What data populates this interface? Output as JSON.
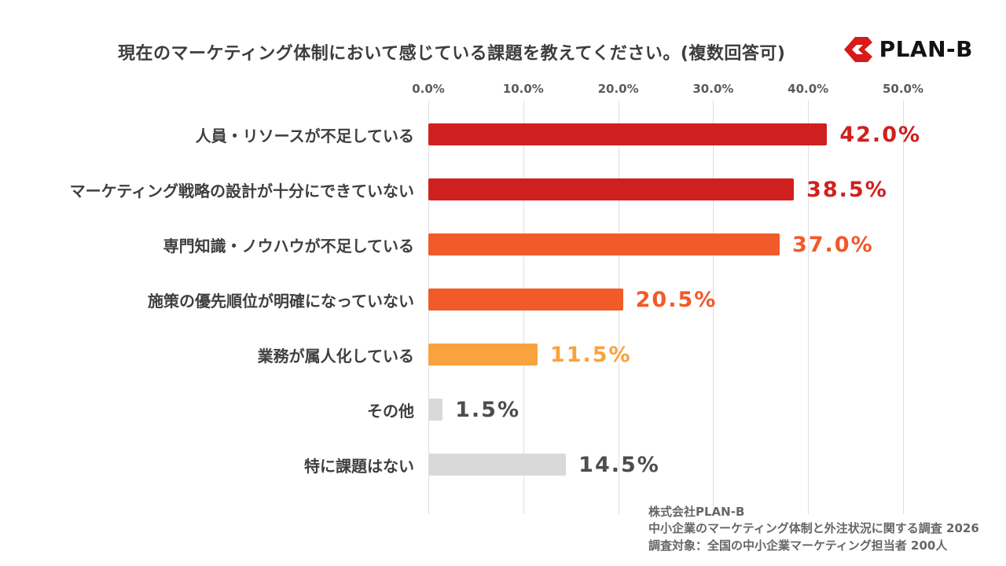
{
  "header": {
    "title": "現在のマーケティング体制において感じている課題を教えてください。(複数回答可)",
    "logo_text": "PLAN-B",
    "logo_color": "#d71a1a"
  },
  "chart_data": {
    "type": "bar",
    "orientation": "horizontal",
    "title": "現在のマーケティング体制において感じている課題を教えてください。(複数回答可)",
    "categories": [
      "人員・リソースが不足している",
      "マーケティング戦略の設計が十分にできていない",
      "専門知識・ノウハウが不足している",
      "施策の優先順位が明確になっていない",
      "業務が属人化している",
      "その他",
      "特に課題はない"
    ],
    "values": [
      42.0,
      38.5,
      37.0,
      20.5,
      11.5,
      1.5,
      14.5
    ],
    "value_labels": [
      "42.0%",
      "38.5%",
      "37.0%",
      "20.5%",
      "11.5%",
      "1.5%",
      "14.5%"
    ],
    "bar_colors": [
      "#cf201f",
      "#cf201f",
      "#f15a29",
      "#f15a29",
      "#f8a33e",
      "#d9d9d9",
      "#d9d9d9"
    ],
    "label_colors": [
      "#cf201f",
      "#cf201f",
      "#f15a29",
      "#f15a29",
      "#f8a33e",
      "#4d4d4d",
      "#4d4d4d"
    ],
    "x_ticks": [
      "0.0%",
      "10.0%",
      "20.0%",
      "30.0%",
      "40.0%",
      "50.0%"
    ],
    "xlim": [
      0,
      50
    ],
    "grid": true,
    "legend": "none"
  },
  "footer": {
    "line1": "株式会社PLAN-B",
    "line2": "中小企業のマーケティング体制と外注状況に関する調査 2026",
    "line3": "調査対象：全国の中小企業マーケティング担当者 200人"
  }
}
